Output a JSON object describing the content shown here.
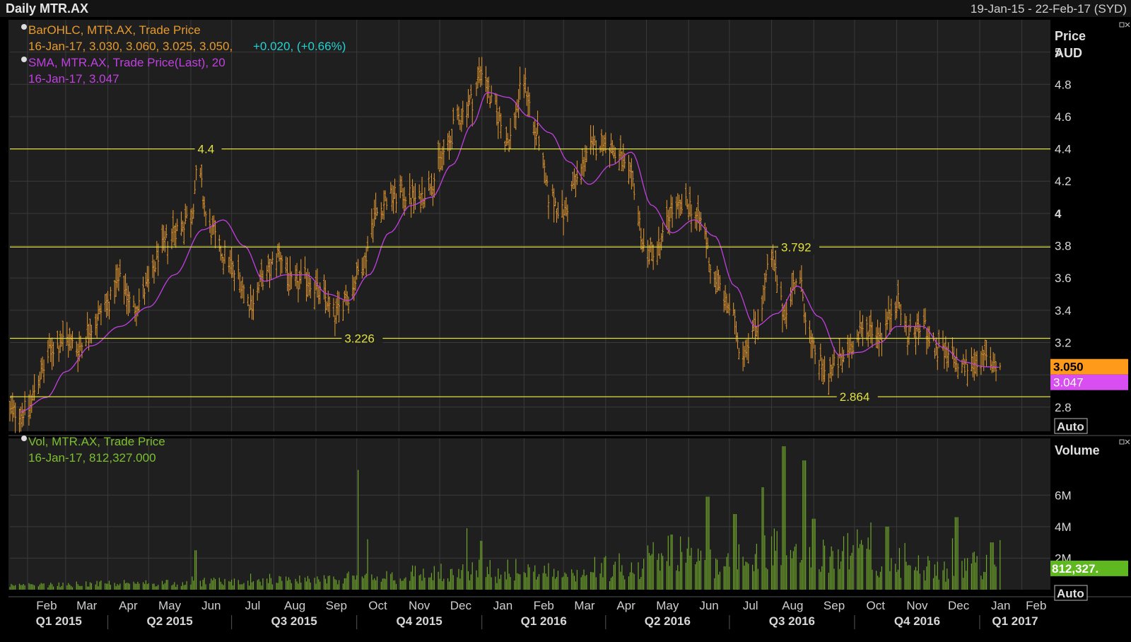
{
  "window": {
    "title": "Daily MTR.AX",
    "range": "19-Jan-15 - 22-Feb-17 (SYD)"
  },
  "legend": {
    "ohlc_label": "BarOHLC, MTR.AX, Trade Price",
    "ohlc_values": "16-Jan-17, 3.030, 3.060, 3.025, 3.050,",
    "ohlc_change": "+0.020, (+0.66%)",
    "sma_label": "SMA, MTR.AX, Trade Price(Last),  20",
    "sma_values": "16-Jan-17, 3.047",
    "vol_label": "Vol, MTR.AX, Trade Price",
    "vol_values": "16-Jan-17, 812,327.000"
  },
  "colors": {
    "ohlc": "#e69a2e",
    "sma": "#c040e0",
    "volume": "#6ea52a",
    "level": "#e0e040",
    "grid": "#3a3a3a",
    "bg": "#1f1f1f"
  },
  "chart_data": {
    "type": "bar",
    "price_axis": {
      "title": "Price",
      "unit": "AUD",
      "range": [
        2.65,
        5.2
      ],
      "ticks": [
        "2.8",
        "3",
        "3.2",
        "3.4",
        "3.6",
        "3.8",
        "4",
        "4.2",
        "4.4",
        "4.6",
        "4.8",
        "5"
      ]
    },
    "volume_axis": {
      "title": "Volume",
      "range": [
        0,
        9600000
      ],
      "ticks": [
        {
          "v": 2000000,
          "label": "2M"
        },
        {
          "v": 4000000,
          "label": "4M"
        },
        {
          "v": 6000000,
          "label": "6M"
        }
      ]
    },
    "auto_label": "Auto",
    "months": [
      "Feb",
      "Mar",
      "Apr",
      "May",
      "Jun",
      "Jul",
      "Aug",
      "Sep",
      "Oct",
      "Nov",
      "Dec",
      "Jan",
      "Feb",
      "Mar",
      "Apr",
      "May",
      "Jun",
      "Jul",
      "Aug",
      "Sep",
      "Oct",
      "Nov",
      "Dec",
      "Jan",
      "Feb"
    ],
    "quarters": [
      "Q1 2015",
      "Q2 2015",
      "Q3 2015",
      "Q4 2015",
      "Q1 2016",
      "Q2 2016",
      "Q3 2016",
      "Q4 2016",
      "Q1 2017"
    ],
    "levels": [
      {
        "value": 4.4,
        "label": "4.4"
      },
      {
        "value": 3.792,
        "label": "3.792"
      },
      {
        "value": 3.226,
        "label": "3.226"
      },
      {
        "value": 2.864,
        "label": "2.864"
      }
    ],
    "last_price": {
      "value": 3.05,
      "label": "3.050"
    },
    "last_sma": {
      "value": 3.047,
      "label": "3.047"
    },
    "last_volume": {
      "value": 812327,
      "label": "812,327."
    },
    "price_series": [
      [
        "2015-01-19",
        2.77
      ],
      [
        "2015-02-01",
        2.78
      ],
      [
        "2015-02-10",
        3.0
      ],
      [
        "2015-02-20",
        3.17
      ],
      [
        "2015-03-01",
        3.22
      ],
      [
        "2015-03-10",
        3.17
      ],
      [
        "2015-03-20",
        3.3
      ],
      [
        "2015-04-01",
        3.45
      ],
      [
        "2015-04-10",
        3.58
      ],
      [
        "2015-04-20",
        3.42
      ],
      [
        "2015-05-01",
        3.55
      ],
      [
        "2015-05-10",
        3.78
      ],
      [
        "2015-05-20",
        3.9
      ],
      [
        "2015-06-01",
        3.98
      ],
      [
        "2015-06-06",
        4.25
      ],
      [
        "2015-06-15",
        3.9
      ],
      [
        "2015-06-25",
        3.75
      ],
      [
        "2015-07-05",
        3.62
      ],
      [
        "2015-07-15",
        3.45
      ],
      [
        "2015-07-25",
        3.6
      ],
      [
        "2015-08-05",
        3.75
      ],
      [
        "2015-08-15",
        3.55
      ],
      [
        "2015-08-25",
        3.6
      ],
      [
        "2015-09-05",
        3.5
      ],
      [
        "2015-09-15",
        3.38
      ],
      [
        "2015-09-25",
        3.5
      ],
      [
        "2015-10-05",
        3.68
      ],
      [
        "2015-10-15",
        4.0
      ],
      [
        "2015-10-25",
        4.1
      ],
      [
        "2015-11-05",
        4.12
      ],
      [
        "2015-11-15",
        4.08
      ],
      [
        "2015-11-25",
        4.2
      ],
      [
        "2015-12-05",
        4.38
      ],
      [
        "2015-12-15",
        4.6
      ],
      [
        "2015-12-25",
        4.7
      ],
      [
        "2016-01-01",
        4.9
      ],
      [
        "2016-01-10",
        4.65
      ],
      [
        "2016-01-20",
        4.45
      ],
      [
        "2016-02-01",
        4.8
      ],
      [
        "2016-02-10",
        4.5
      ],
      [
        "2016-02-20",
        4.1
      ],
      [
        "2016-03-01",
        4.0
      ],
      [
        "2016-03-10",
        4.2
      ],
      [
        "2016-03-20",
        4.4
      ],
      [
        "2016-04-01",
        4.45
      ],
      [
        "2016-04-10",
        4.35
      ],
      [
        "2016-04-20",
        4.2
      ],
      [
        "2016-05-01",
        3.75
      ],
      [
        "2016-05-10",
        3.8
      ],
      [
        "2016-05-20",
        4.02
      ],
      [
        "2016-06-01",
        4.05
      ],
      [
        "2016-06-10",
        3.95
      ],
      [
        "2016-06-20",
        3.6
      ],
      [
        "2016-07-01",
        3.42
      ],
      [
        "2016-07-10",
        3.15
      ],
      [
        "2016-07-20",
        3.3
      ],
      [
        "2016-08-01",
        3.7
      ],
      [
        "2016-08-10",
        3.4
      ],
      [
        "2016-08-20",
        3.6
      ],
      [
        "2016-09-01",
        3.15
      ],
      [
        "2016-09-10",
        3.0
      ],
      [
        "2016-09-20",
        3.08
      ],
      [
        "2016-10-01",
        3.2
      ],
      [
        "2016-10-10",
        3.3
      ],
      [
        "2016-10-20",
        3.25
      ],
      [
        "2016-11-01",
        3.45
      ],
      [
        "2016-11-10",
        3.25
      ],
      [
        "2016-11-20",
        3.3
      ],
      [
        "2016-12-01",
        3.15
      ],
      [
        "2016-12-10",
        3.1
      ],
      [
        "2016-12-20",
        3.05
      ],
      [
        "2017-01-01",
        3.1
      ],
      [
        "2017-01-16",
        3.05
      ]
    ],
    "sma_series": [
      [
        "2015-01-26",
        2.77
      ],
      [
        "2015-02-15",
        2.86
      ],
      [
        "2015-03-01",
        3.02
      ],
      [
        "2015-03-20",
        3.18
      ],
      [
        "2015-04-10",
        3.3
      ],
      [
        "2015-05-01",
        3.42
      ],
      [
        "2015-05-20",
        3.62
      ],
      [
        "2015-06-10",
        3.9
      ],
      [
        "2015-06-25",
        3.96
      ],
      [
        "2015-07-10",
        3.8
      ],
      [
        "2015-07-25",
        3.58
      ],
      [
        "2015-08-10",
        3.62
      ],
      [
        "2015-08-25",
        3.62
      ],
      [
        "2015-09-10",
        3.5
      ],
      [
        "2015-09-25",
        3.46
      ],
      [
        "2015-10-10",
        3.62
      ],
      [
        "2015-10-25",
        3.88
      ],
      [
        "2015-11-10",
        4.05
      ],
      [
        "2015-11-25",
        4.1
      ],
      [
        "2015-12-10",
        4.3
      ],
      [
        "2015-12-25",
        4.55
      ],
      [
        "2016-01-05",
        4.75
      ],
      [
        "2016-01-20",
        4.72
      ],
      [
        "2016-02-05",
        4.6
      ],
      [
        "2016-02-20",
        4.5
      ],
      [
        "2016-03-05",
        4.32
      ],
      [
        "2016-03-20",
        4.18
      ],
      [
        "2016-04-05",
        4.3
      ],
      [
        "2016-04-20",
        4.38
      ],
      [
        "2016-05-05",
        4.05
      ],
      [
        "2016-05-20",
        3.88
      ],
      [
        "2016-06-05",
        3.96
      ],
      [
        "2016-06-20",
        3.86
      ],
      [
        "2016-07-05",
        3.55
      ],
      [
        "2016-07-20",
        3.3
      ],
      [
        "2016-08-05",
        3.38
      ],
      [
        "2016-08-20",
        3.55
      ],
      [
        "2016-09-05",
        3.36
      ],
      [
        "2016-09-20",
        3.12
      ],
      [
        "2016-10-05",
        3.14
      ],
      [
        "2016-10-20",
        3.2
      ],
      [
        "2016-11-01",
        3.3
      ],
      [
        "2016-11-20",
        3.3
      ],
      [
        "2016-12-05",
        3.17
      ],
      [
        "2016-12-20",
        3.08
      ],
      [
        "2017-01-05",
        3.05
      ],
      [
        "2017-01-16",
        3.047
      ]
    ],
    "volume_spikes": [
      [
        "2015-06-05",
        2500000
      ],
      [
        "2015-10-03",
        7600000
      ],
      [
        "2015-10-10",
        3200000
      ],
      [
        "2015-12-20",
        3900000
      ],
      [
        "2016-01-01",
        3100000
      ],
      [
        "2016-05-20",
        3500000
      ],
      [
        "2016-06-15",
        5900000
      ],
      [
        "2016-07-05",
        4800000
      ],
      [
        "2016-07-25",
        6500000
      ],
      [
        "2016-08-10",
        9100000
      ],
      [
        "2016-08-25",
        8200000
      ],
      [
        "2016-09-01",
        4500000
      ],
      [
        "2016-10-25",
        4000000
      ],
      [
        "2016-12-15",
        4600000
      ],
      [
        "2017-01-10",
        3000000
      ]
    ]
  }
}
